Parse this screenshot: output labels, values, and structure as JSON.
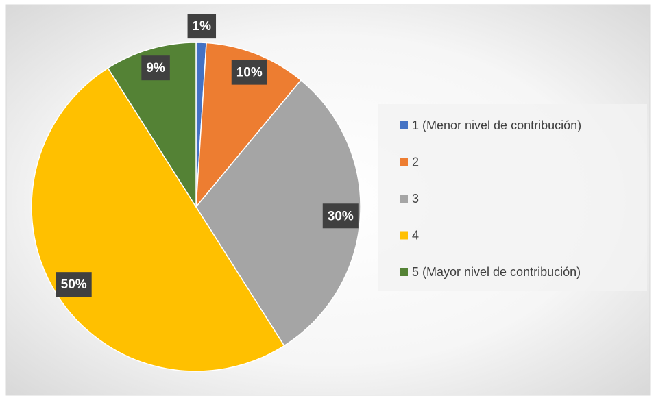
{
  "chart_data": {
    "type": "pie",
    "categories": [
      "1 (Menor nivel de contribución)",
      "2",
      "3",
      "4",
      "5 (Mayor nivel de contribución)"
    ],
    "values": [
      1,
      10,
      30,
      50,
      9
    ],
    "value_labels": [
      "1%",
      "10%",
      "30%",
      "50%",
      "9%"
    ],
    "colors": [
      "#4472c4",
      "#ed7d31",
      "#a5a5a5",
      "#ffc000",
      "#548235"
    ],
    "legend": "right"
  }
}
